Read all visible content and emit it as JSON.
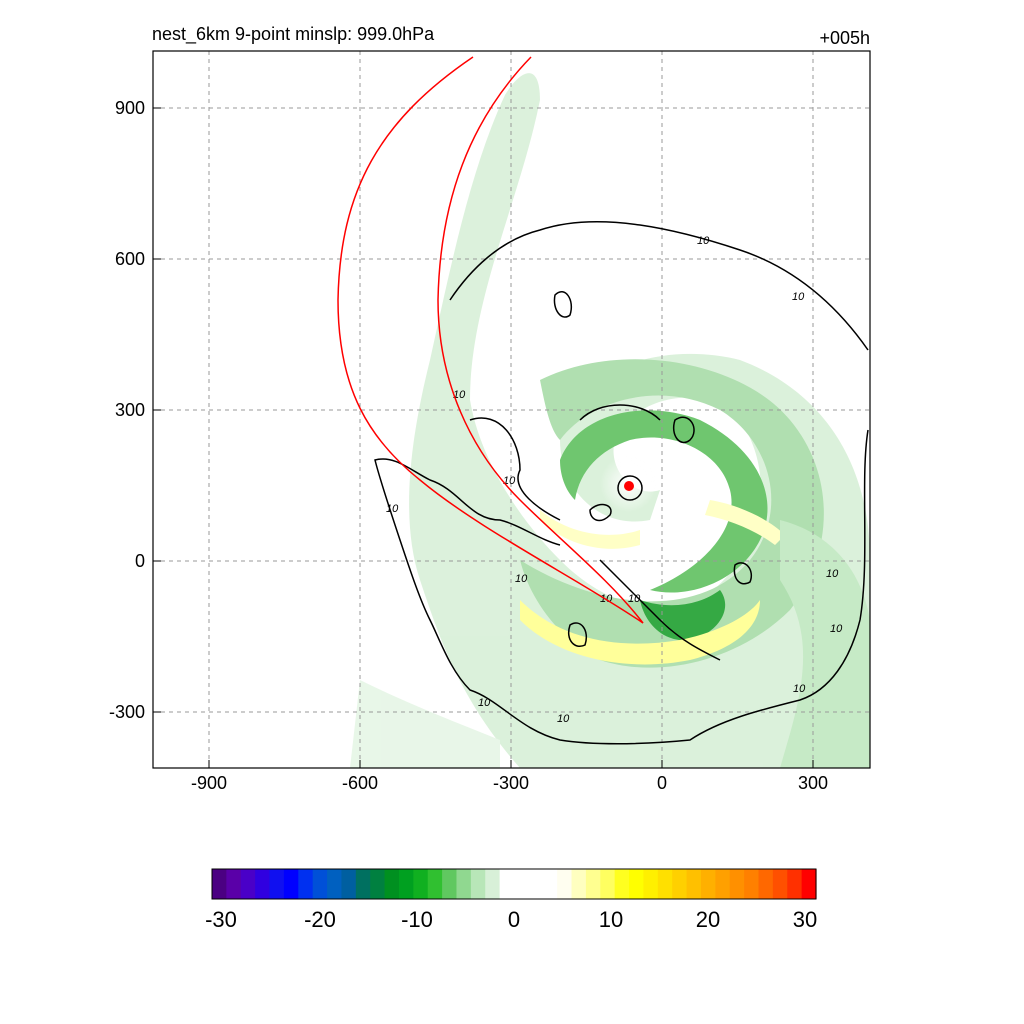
{
  "chart_data": {
    "type": "heatmap",
    "title_left": "nest_6km  9-point minslp: 999.0hPa",
    "title_right": "+005h",
    "xlim": [
      -1010,
      410
    ],
    "ylim": [
      -410,
      1030
    ],
    "x_ticks": [
      -900,
      -600,
      -300,
      0,
      300
    ],
    "y_ticks": [
      -300,
      0,
      300,
      600,
      900
    ],
    "grid": "dashed",
    "colorbar": {
      "range": [
        -30,
        30
      ],
      "ticks": [
        -30,
        -20,
        -10,
        0,
        10,
        20,
        30
      ],
      "orientation": "horizontal",
      "colors": [
        "#4b0082",
        "#5a00a8",
        "#4a00c8",
        "#3000e0",
        "#1010f0",
        "#0000ff",
        "#0030f0",
        "#0050d8",
        "#0060c0",
        "#005fa0",
        "#007060",
        "#008040",
        "#009020",
        "#00a020",
        "#10b020",
        "#30c030",
        "#60c860",
        "#90d890",
        "#b8e6b8",
        "#d8f0d8",
        "#ffffff",
        "#ffffff",
        "#ffffff",
        "#ffffff",
        "#fffef0",
        "#ffffc0",
        "#ffff90",
        "#ffff60",
        "#ffff20",
        "#ffff00",
        "#fff000",
        "#ffe000",
        "#ffd000",
        "#ffc000",
        "#ffb000",
        "#ffa000",
        "#ff9000",
        "#ff8000",
        "#ff6800",
        "#ff5000",
        "#ff3000",
        "#ff0000"
      ]
    },
    "contour_level_label": "10",
    "track_color": "#ff0000",
    "center_marker": {
      "x": -70,
      "y": 150,
      "color": "#ff0000"
    }
  }
}
